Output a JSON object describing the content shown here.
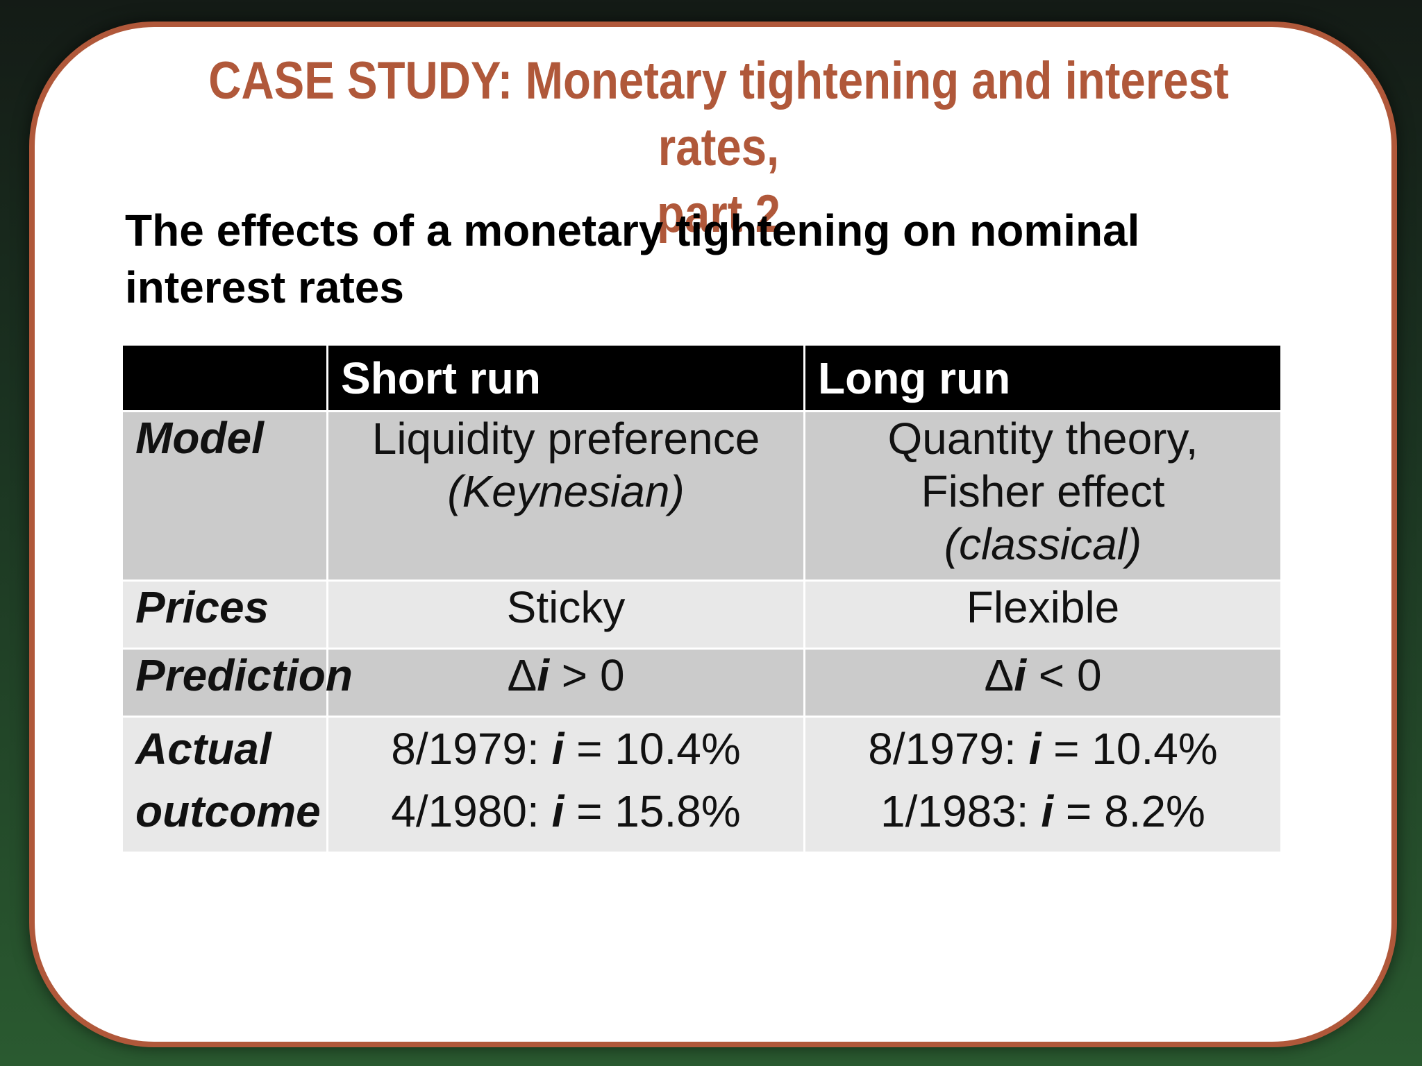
{
  "slide": {
    "title_line1": "CASE STUDY: Monetary tightening and interest rates,",
    "title_line2": "part 2",
    "subtitle_line1": "The effects of a monetary tightening on nominal",
    "subtitle_line2": "interest rates",
    "colors": {
      "accent": "#b0583a",
      "header_bg": "#000000",
      "row_dark": "#cbcbcb",
      "row_light": "#e8e8e8"
    }
  },
  "table": {
    "headers": [
      "",
      "Short run",
      "Long run"
    ],
    "model": {
      "label": "Model",
      "short": {
        "line1": "Liquidity preference",
        "line2": "(Keynesian)"
      },
      "long": {
        "line1": "Quantity theory,",
        "line2": "Fisher effect",
        "line3": "(classical)"
      }
    },
    "prices": {
      "label": "Prices",
      "short": "Sticky",
      "long": "Flexible"
    },
    "prediction": {
      "label": "Prediction",
      "delta": "Δ",
      "var": "i",
      "short_rel": " > 0",
      "long_rel": " < 0"
    },
    "actual": {
      "label_line1": "Actual",
      "label_line2": "outcome",
      "var": "i",
      "short": [
        {
          "date": "8/1979: ",
          "value": " = 10.4%"
        },
        {
          "date": "4/1980: ",
          "value": " = 15.8%"
        }
      ],
      "long": [
        {
          "date": "8/1979: ",
          "value": " = 10.4%"
        },
        {
          "date": "1/1983: ",
          "value": " = 8.2%"
        }
      ]
    }
  }
}
